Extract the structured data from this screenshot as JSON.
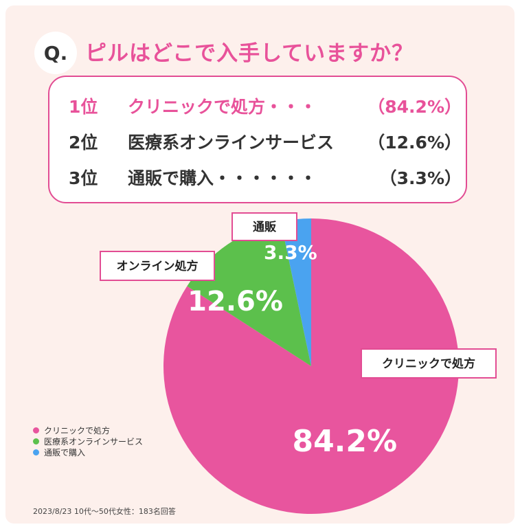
{
  "question": {
    "prefix": "Q.",
    "text": "ピルはどこで入手していますか？"
  },
  "ranking": [
    {
      "rank": "1位",
      "name": "クリニックで処方・・・",
      "percent": "（84.2%）"
    },
    {
      "rank": "2位",
      "name": "医療系オンラインサービス",
      "percent": "（12.6%）"
    },
    {
      "rank": "3位",
      "name": "通販で購入・・・・・・",
      "percent": "（3.3%）"
    }
  ],
  "chart_data": {
    "type": "pie",
    "slices": [
      {
        "label": "クリニックで処方",
        "legend": "クリニックで処方",
        "value": 84.2,
        "value_label": "84.2%",
        "color": "#e8559e"
      },
      {
        "label": "オンライン処方",
        "legend": "医療系オンラインサービス",
        "value": 12.6,
        "value_label": "12.6%",
        "color": "#5cc04c"
      },
      {
        "label": "通販",
        "legend": "通販で購入",
        "value": 3.3,
        "value_label": "3.3%",
        "color": "#4aa3f0"
      }
    ],
    "legend_position": "bottom-left"
  },
  "colors": {
    "accent": "#e8529a",
    "background": "#fdf0ec",
    "callout_border": "#e24c93"
  },
  "footnote": "2023/8/23 10代〜50代女性：183名回答"
}
